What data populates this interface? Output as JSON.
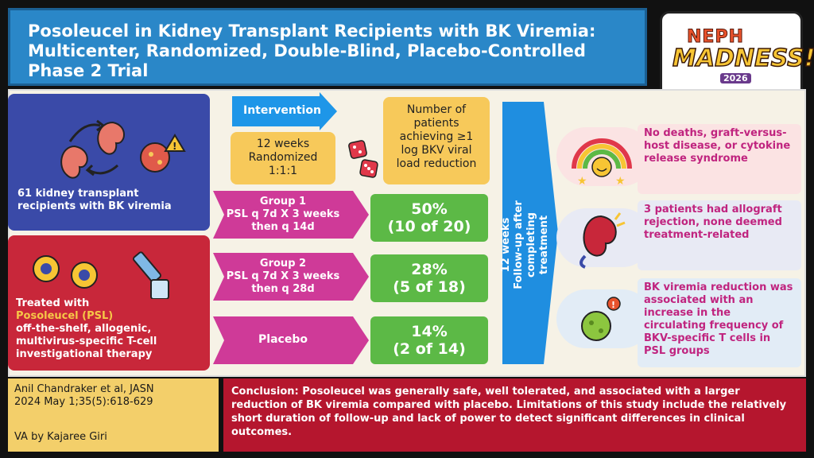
{
  "header": {
    "title": "Posoleucel in Kidney Transplant Recipients with BK Viremia: Multicenter, Randomized, Double-Blind, Placebo-Controlled Phase 2 Trial"
  },
  "logo": {
    "line1": "NEPH",
    "line2": "MADNESS!",
    "year": "2026"
  },
  "population": {
    "text": "61 kidney transplant recipients with BK viremia"
  },
  "treatment": {
    "prefix": "Treated with",
    "drug": "Posoleucel (PSL)",
    "description": "off-the-shelf, allogenic, multivirus-specific T-cell investigational therapy"
  },
  "intervention": {
    "label": "Intervention",
    "design": [
      "12 weeks",
      "Randomized",
      "1:1:1"
    ]
  },
  "outcome_header": {
    "text": "Number of patients achieving ≥1 log BKV viral load reduction"
  },
  "groups": [
    {
      "name": "Group 1",
      "regimen": "PSL q 7d X 3 weeks",
      "regimen2": "then q 14d",
      "pct": "50%",
      "count": "(10 of 20)"
    },
    {
      "name": "Group 2",
      "regimen": "PSL q 7d X 3 weeks",
      "regimen2": "then q 28d",
      "pct": "28%",
      "count": "(5 of 18)"
    },
    {
      "name": "Placebo",
      "regimen": "",
      "regimen2": "",
      "pct": "14%",
      "count": "(2 of 14)"
    }
  ],
  "followup": {
    "line1": "12 weeks",
    "line2": "Follow-up after completing",
    "line3": "treatment"
  },
  "outcomes": [
    {
      "text": "No deaths, graft-versus-host disease, or cytokine release syndrome",
      "icon": "satisfaction-rainbow-icon"
    },
    {
      "text": "3 patients had allograft rejection, none deemed treatment-related",
      "icon": "kidney-icon"
    },
    {
      "text": "BK viremia reduction was associated with an increase in the circulating frequency of BKV-specific T cells in PSL groups",
      "icon": "virus-icon"
    }
  ],
  "citation": {
    "line1": "Anil Chandraker et al, JASN",
    "line2": "2024 May 1;35(5):618-629",
    "author": "VA by Kajaree Giri"
  },
  "conclusion": {
    "text": "Conclusion: Posoleucel was generally safe, well tolerated, and associated with a larger reduction of BK viremia compared with placebo. Limitations of this study include the relatively short duration of follow-up and lack of power to detect significant differences in clinical outcomes."
  },
  "colors": {
    "header_blue": "#2a87c8",
    "group_magenta": "#cf3a98",
    "result_green": "#5cb946",
    "conclusion_red": "#b5162e"
  }
}
